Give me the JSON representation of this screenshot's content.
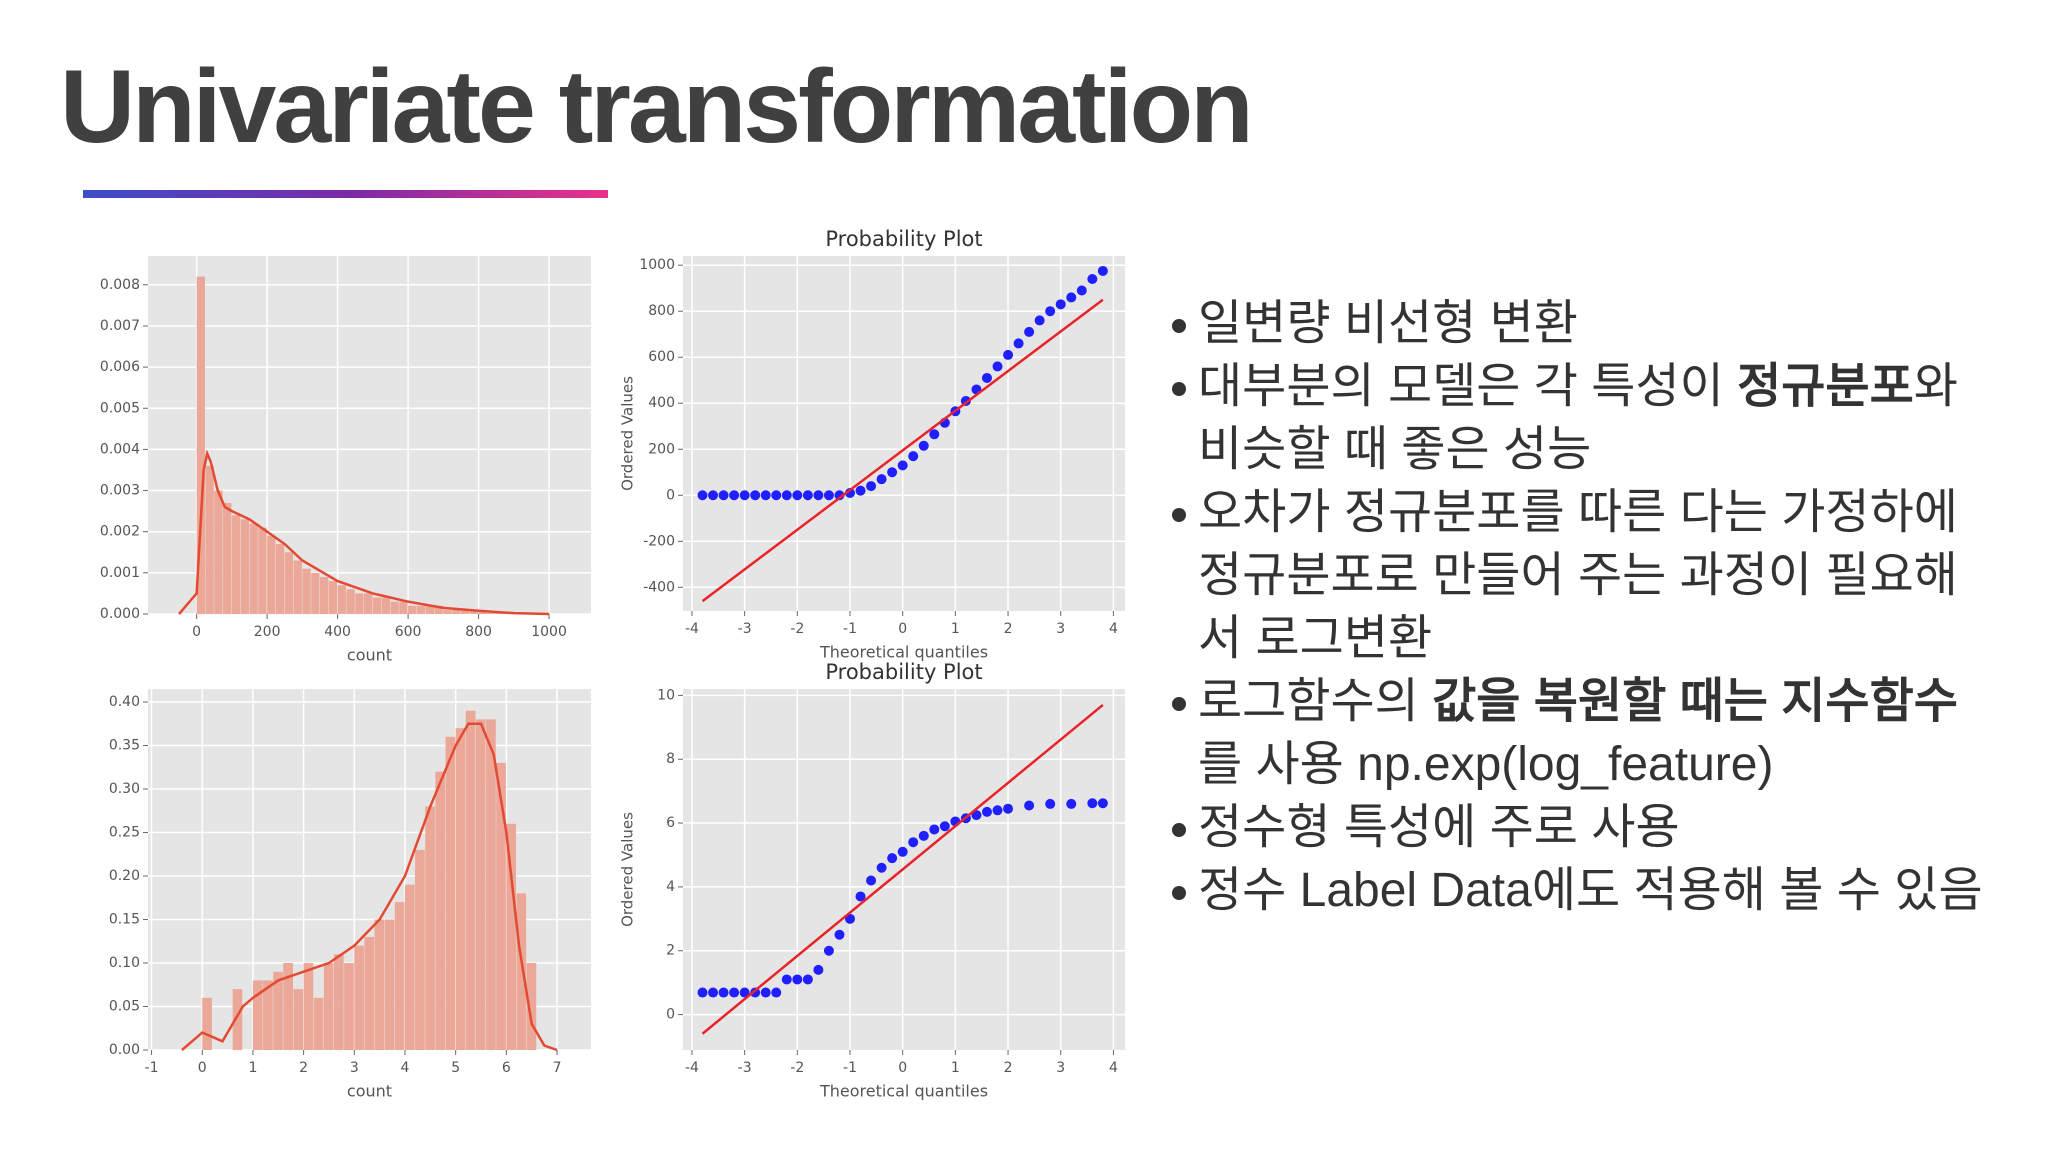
{
  "title": "Univariate transformation",
  "bullets": [
    {
      "parts": [
        {
          "text": "일변량 비선형 변환"
        }
      ]
    },
    {
      "parts": [
        {
          "text": "대부분의 모델은 각 특성이 "
        },
        {
          "text": "정규분포",
          "bold": true
        },
        {
          "text": "와 비슷할 때 좋은 성능"
        }
      ]
    },
    {
      "parts": [
        {
          "text": "오차가 정규분포를 따른 다는 가정하에  정규분포로 만들어 주는 과정이 필요해서 로그변환"
        }
      ]
    },
    {
      "parts": [
        {
          "text": "로그함수의 "
        },
        {
          "text": "값을 복원할 때는 지수함수",
          "bold": true
        },
        {
          "text": "를 사용 np.exp(log_feature)"
        }
      ]
    },
    {
      "parts": [
        {
          "text": "정수형 특성에 주로 사용"
        }
      ]
    },
    {
      "parts": [
        {
          "text": "정수 Label Data에도 적용해 볼 수 있음"
        }
      ]
    }
  ],
  "chart_data": [
    {
      "type": "histogram",
      "xlabel": "count",
      "color": "#eba797",
      "line_color": "#e24a33",
      "bins": [
        0,
        25,
        50,
        75,
        100,
        125,
        150,
        175,
        200,
        225,
        250,
        275,
        300,
        325,
        350,
        375,
        400,
        425,
        450,
        475,
        500,
        525,
        550,
        575,
        600,
        625,
        650,
        675,
        700,
        725,
        750,
        775,
        800,
        825,
        850,
        875,
        900,
        925,
        950,
        975,
        1000
      ],
      "counts": [
        0.0082,
        0.0036,
        0.003,
        0.0027,
        0.0024,
        0.0023,
        0.0022,
        0.0021,
        0.0019,
        0.0017,
        0.0015,
        0.0013,
        0.0011,
        0.001,
        0.0009,
        0.0008,
        0.0007,
        0.0006,
        0.0005,
        0.0005,
        0.0004,
        0.0004,
        0.0003,
        0.0003,
        0.0002,
        0.0002,
        0.0002,
        0.0002,
        0.0001,
        0.0001,
        0.0001,
        0.0001,
        0.0001,
        5e-05,
        3e-05,
        2e-05,
        1e-05,
        1e-05,
        1e-05,
        1e-05
      ],
      "kde": {
        "x": [
          -50,
          0,
          10,
          20,
          30,
          40,
          60,
          80,
          100,
          150,
          200,
          250,
          300,
          400,
          500,
          600,
          700,
          800,
          900,
          1000
        ],
        "values": [
          0,
          0.0005,
          0.002,
          0.0035,
          0.0039,
          0.0037,
          0.003,
          0.0026,
          0.0025,
          0.0023,
          0.002,
          0.0017,
          0.0013,
          0.0008,
          0.0005,
          0.0003,
          0.00015,
          8e-05,
          2e-05,
          0
        ]
      },
      "xlim": [
        -138,
        1119
      ],
      "ylim": [
        0,
        0.0087
      ],
      "xticks": [
        0,
        200,
        400,
        600,
        800,
        1000
      ],
      "yticks": [
        {
          "value": 0,
          "label": "0.000"
        },
        {
          "value": 0.001,
          "label": "0.001"
        },
        {
          "value": 0.002,
          "label": "0.002"
        },
        {
          "value": 0.003,
          "label": "0.003"
        },
        {
          "value": 0.004,
          "label": "0.004"
        },
        {
          "value": 0.005,
          "label": "0.005"
        },
        {
          "value": 0.006,
          "label": "0.006"
        },
        {
          "value": 0.007,
          "label": "0.007"
        },
        {
          "value": 0.008,
          "label": "0.008"
        }
      ],
      "grid": true
    },
    {
      "type": "scatter",
      "title": "Probability Plot",
      "xlabel": "Theoretical quantiles",
      "ylabel": "Ordered Values",
      "color": "#1f1fff",
      "line_color": "#e8242a",
      "x": [
        -3.8,
        -3.6,
        -3.4,
        -3.2,
        -3.0,
        -2.8,
        -2.6,
        -2.4,
        -2.2,
        -2.0,
        -1.8,
        -1.6,
        -1.4,
        -1.2,
        -1.0,
        -0.8,
        -0.6,
        -0.4,
        -0.2,
        0,
        0.2,
        0.4,
        0.6,
        0.8,
        1.0,
        1.2,
        1.4,
        1.6,
        1.8,
        2.0,
        2.2,
        2.4,
        2.6,
        2.8,
        3.0,
        3.2,
        3.4,
        3.6,
        3.8
      ],
      "values": [
        0,
        0,
        0,
        0,
        0,
        0,
        0,
        0,
        0,
        0,
        0,
        0,
        0,
        0,
        10,
        20,
        40,
        70,
        100,
        130,
        170,
        215,
        265,
        315,
        365,
        410,
        460,
        510,
        560,
        610,
        660,
        710,
        760,
        800,
        830,
        860,
        890,
        940,
        975
      ],
      "fit_line": {
        "x": [
          -3.8,
          3.8
        ],
        "values": [
          -460,
          850
        ]
      },
      "xlim": [
        -4.17,
        4.22
      ],
      "ylim": [
        -503,
        1040
      ],
      "xticks": [
        -4,
        -3,
        -2,
        -1,
        0,
        1,
        2,
        3,
        4
      ],
      "yticks": [
        -400,
        -200,
        0,
        200,
        400,
        600,
        800,
        1000
      ],
      "grid": true
    },
    {
      "type": "histogram",
      "xlabel": "count",
      "color": "#eba797",
      "line_color": "#e24a33",
      "bins": [
        0,
        0.2,
        0.4,
        0.6,
        0.8,
        1.0,
        1.2,
        1.4,
        1.6,
        1.8,
        2.0,
        2.2,
        2.4,
        2.6,
        2.8,
        3.0,
        3.2,
        3.4,
        3.6,
        3.8,
        4.0,
        4.2,
        4.4,
        4.6,
        4.8,
        5.0,
        5.2,
        5.4,
        5.6,
        5.8,
        6.0,
        6.2,
        6.4,
        6.6
      ],
      "counts": [
        0.06,
        0,
        0,
        0.07,
        0,
        0.08,
        0.08,
        0.09,
        0.1,
        0.07,
        0.1,
        0.06,
        0.1,
        0.11,
        0.1,
        0.12,
        0.13,
        0.15,
        0.15,
        0.17,
        0.19,
        0.23,
        0.28,
        0.32,
        0.36,
        0.37,
        0.39,
        0.38,
        0.38,
        0.33,
        0.26,
        0.18,
        0.1
      ],
      "kde": {
        "x": [
          -0.4,
          -0.2,
          0,
          0.2,
          0.4,
          0.6,
          0.8,
          1.0,
          1.5,
          2.0,
          2.5,
          3.0,
          3.5,
          4.0,
          4.5,
          5.0,
          5.25,
          5.5,
          5.75,
          6.0,
          6.25,
          6.5,
          6.75,
          7.0
        ],
        "values": [
          0,
          0.01,
          0.02,
          0.015,
          0.01,
          0.03,
          0.05,
          0.06,
          0.08,
          0.09,
          0.1,
          0.12,
          0.15,
          0.2,
          0.28,
          0.35,
          0.375,
          0.375,
          0.34,
          0.25,
          0.12,
          0.03,
          0.005,
          0
        ]
      },
      "xlim": [
        -1.07,
        7.67
      ],
      "ylim": [
        0,
        0.415
      ],
      "xticks": [
        -1,
        0,
        1,
        2,
        3,
        4,
        5,
        6,
        7
      ],
      "yticks": [
        {
          "value": 0,
          "label": "0.00"
        },
        0.05,
        {
          "value": 0.1,
          "label": "0.10"
        },
        0.15,
        {
          "value": 0.2,
          "label": "0.20"
        },
        0.25,
        {
          "value": 0.3,
          "label": "0.30"
        },
        0.35,
        {
          "value": 0.4,
          "label": "0.40"
        }
      ],
      "grid": true
    },
    {
      "type": "scatter",
      "title": "Probability Plot",
      "xlabel": "Theoretical quantiles",
      "ylabel": "Ordered Values",
      "color": "#1f1fff",
      "line_color": "#e8242a",
      "x": [
        -3.8,
        -3.6,
        -3.4,
        -3.2,
        -3.0,
        -2.8,
        -2.6,
        -2.4,
        -2.2,
        -2.0,
        -1.8,
        -1.6,
        -1.4,
        -1.2,
        -1.0,
        -0.8,
        -0.6,
        -0.4,
        -0.2,
        0,
        0.2,
        0.4,
        0.6,
        0.8,
        1.0,
        1.2,
        1.4,
        1.6,
        1.8,
        2.0,
        2.4,
        2.8,
        3.2,
        3.6,
        3.8
      ],
      "values": [
        0.69,
        0.69,
        0.69,
        0.69,
        0.69,
        0.69,
        0.69,
        0.69,
        1.1,
        1.1,
        1.1,
        1.4,
        2.0,
        2.5,
        3.0,
        3.7,
        4.2,
        4.6,
        4.9,
        5.1,
        5.4,
        5.6,
        5.8,
        5.9,
        6.05,
        6.15,
        6.25,
        6.35,
        6.4,
        6.45,
        6.55,
        6.6,
        6.6,
        6.62,
        6.62
      ],
      "fit_line": {
        "x": [
          -3.8,
          3.8
        ],
        "values": [
          -0.6,
          9.7
        ]
      },
      "xlim": [
        -4.17,
        4.22
      ],
      "ylim": [
        -1.11,
        10.2
      ],
      "xticks": [
        -4,
        -3,
        -2,
        -1,
        0,
        1,
        2,
        3,
        4
      ],
      "yticks": [
        0,
        2,
        4,
        6,
        8,
        10
      ],
      "grid": true
    }
  ]
}
